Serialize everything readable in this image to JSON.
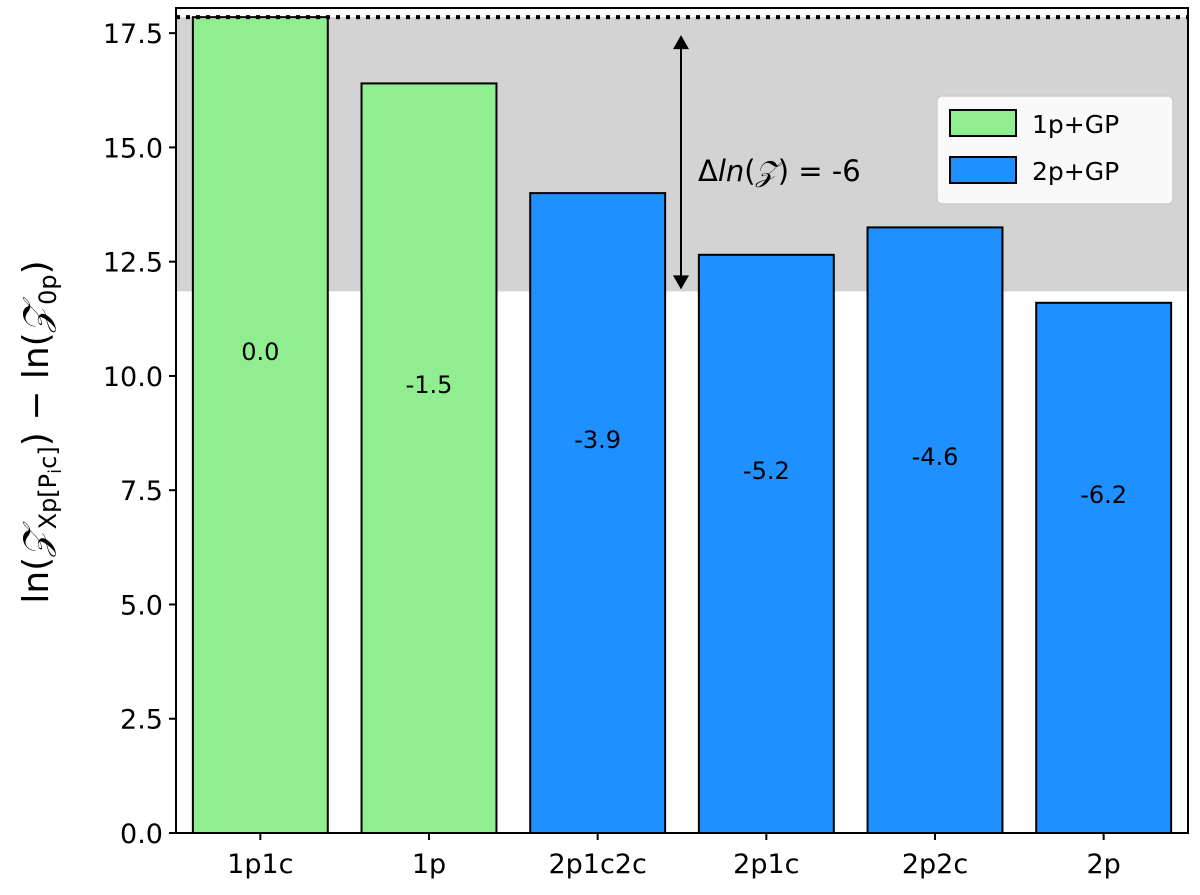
{
  "chart_data": {
    "type": "bar",
    "categories": [
      "1p1c",
      "1p",
      "2p1c2c",
      "2p1c",
      "2p2c",
      "2p"
    ],
    "values": [
      17.85,
      16.4,
      14.0,
      12.65,
      13.25,
      11.6
    ],
    "bar_labels": [
      "0.0",
      "-1.5",
      "-3.9",
      "-5.2",
      "-4.6",
      "-6.2"
    ],
    "bar_groups": [
      "1p+GP",
      "1p+GP",
      "2p+GP",
      "2p+GP",
      "2p+GP",
      "2p+GP"
    ],
    "series": [
      {
        "name": "1p+GP",
        "color": "#90ee90"
      },
      {
        "name": "2p+GP",
        "color": "#1e90ff"
      }
    ],
    "ylabel_parts": {
      "ln1": "ln(",
      "z1": "𝒵",
      "sub1": "Xp[P",
      "subsub": "i",
      "sub1b": "c]",
      "mid": ") − ln(",
      "z2": "𝒵",
      "sub2": "0p",
      "end": ")"
    },
    "ylim": [
      0,
      18.05
    ],
    "yticks": [
      "0.0",
      "2.5",
      "5.0",
      "7.5",
      "10.0",
      "12.5",
      "15.0",
      "17.5"
    ],
    "ytick_values": [
      0,
      2.5,
      5,
      7.5,
      10,
      12.5,
      15,
      17.5
    ],
    "reference_line": 17.85,
    "shaded_band": [
      11.85,
      17.85
    ],
    "annotation": {
      "delta": "Δ",
      "ln": "ln",
      "open": "(",
      "z": "𝒵",
      "rest": ") = -6"
    },
    "legend_position": "upper-right",
    "grid": false,
    "colors": {
      "band": "#d3d3d3",
      "edge": "#000000"
    }
  }
}
